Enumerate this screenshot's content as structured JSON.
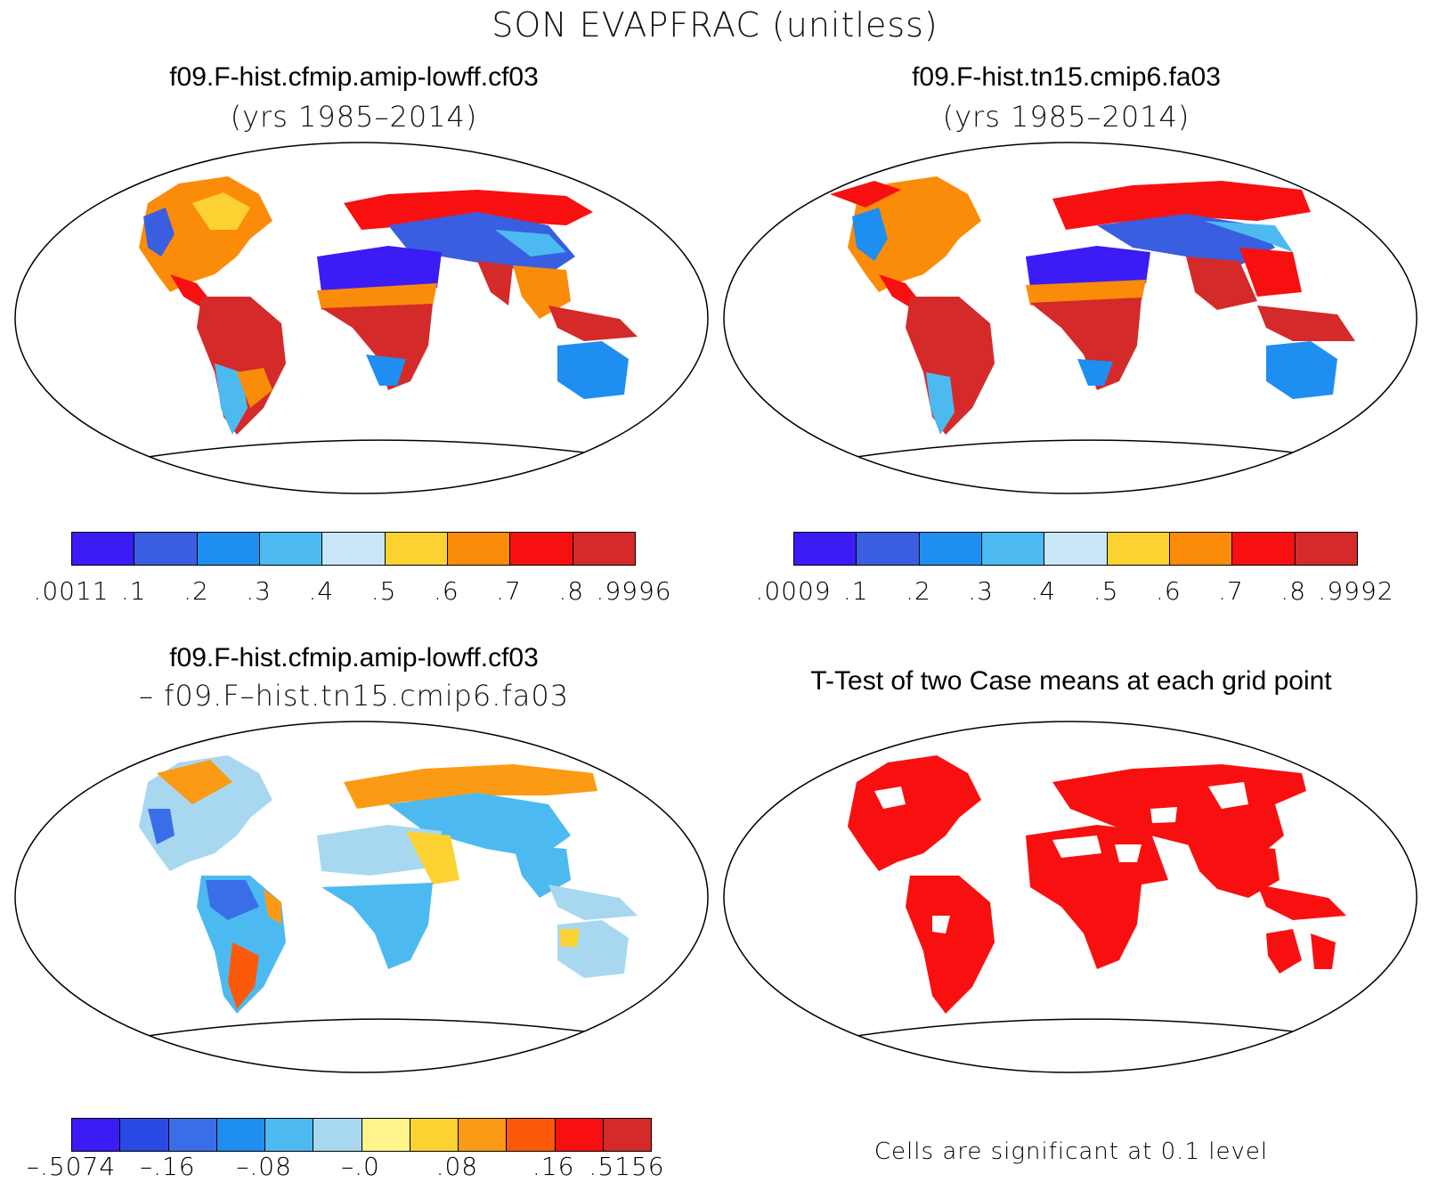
{
  "title": "SON EVAPFRAC (unitless)",
  "panels": {
    "top_left": {
      "title": "f09.F-hist.cfmip.amip-lowff.cf03",
      "subtitle": "(yrs 1985–2014)",
      "colorbar": {
        "colors": [
          "#3b1cf5",
          "#3a5ee0",
          "#1e8ef0",
          "#4cbaf0",
          "#c8e6f6",
          "#fbd232",
          "#fb8c0a",
          "#f81010",
          "#d42a2a"
        ],
        "ticks": [
          ".0011",
          ".1",
          ".2",
          ".3",
          ".4",
          ".5",
          ".6",
          ".7",
          ".8",
          ".9996"
        ]
      }
    },
    "top_right": {
      "title": "f09.F-hist.tn15.cmip6.fa03",
      "subtitle": "(yrs 1985–2014)",
      "colorbar": {
        "colors": [
          "#3b1cf5",
          "#3a5ee0",
          "#1e8ef0",
          "#4cbaf0",
          "#c8e6f6",
          "#fbd232",
          "#fb8c0a",
          "#f81010",
          "#d42a2a"
        ],
        "ticks": [
          ".0009",
          ".1",
          ".2",
          ".3",
          ".4",
          ".5",
          ".6",
          ".7",
          ".8",
          ".9992"
        ]
      }
    },
    "bottom_left": {
      "title": "f09.F-hist.cfmip.amip-lowff.cf03",
      "subtitle": "– f09.F–hist.tn15.cmip6.fa03",
      "colorbar": {
        "colors": [
          "#3b1cf5",
          "#2a4ae6",
          "#3a6ee8",
          "#1e8ef0",
          "#4cbaf0",
          "#a8d8f0",
          "#fff58c",
          "#fbd232",
          "#fb9a14",
          "#fb5a0a",
          "#f81010",
          "#d42a2a"
        ],
        "ticks": [
          "–.5074",
          "–.16",
          "–.08",
          "–.0",
          ".08",
          ".16",
          ".5156"
        ]
      }
    },
    "bottom_right": {
      "title": "T-Test of two Case means at each grid point",
      "footnote": "Cells are significant at 0.1 level",
      "significance_color": "#f81010"
    }
  }
}
